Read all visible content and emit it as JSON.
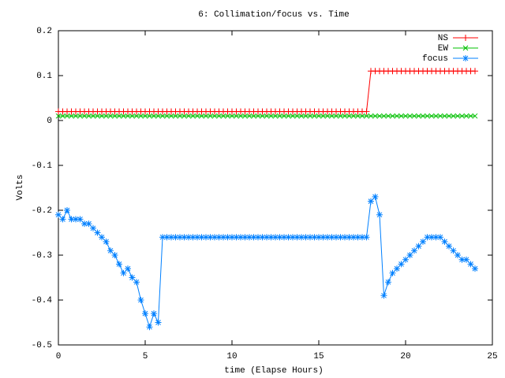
{
  "chart_data": {
    "type": "line",
    "title": "6: Collimation/focus vs. Time",
    "x_label": "time (Elapse Hours)",
    "y_label": "Volts",
    "xlim": [
      0,
      25
    ],
    "ylim": [
      -0.5,
      0.2
    ],
    "xticks": [
      0,
      5,
      10,
      15,
      20,
      25
    ],
    "yticks": [
      -0.5,
      -0.4,
      -0.3,
      -0.2,
      -0.1,
      0,
      0.1,
      0.2
    ],
    "legend": "top right",
    "x": [
      0,
      0.25,
      0.5,
      0.75,
      1,
      1.25,
      1.5,
      1.75,
      2,
      2.25,
      2.5,
      2.75,
      3,
      3.25,
      3.5,
      3.75,
      4,
      4.25,
      4.5,
      4.75,
      5,
      5.25,
      5.5,
      5.75,
      6,
      6.25,
      6.5,
      6.75,
      7,
      7.25,
      7.5,
      7.75,
      8,
      8.25,
      8.5,
      8.75,
      9,
      9.25,
      9.5,
      9.75,
      10,
      10.25,
      10.5,
      10.75,
      11,
      11.25,
      11.5,
      11.75,
      12,
      12.25,
      12.5,
      12.75,
      13,
      13.25,
      13.5,
      13.75,
      14,
      14.25,
      14.5,
      14.75,
      15,
      15.25,
      15.5,
      15.75,
      16,
      16.25,
      16.5,
      16.75,
      17,
      17.25,
      17.5,
      17.75,
      18,
      18.25,
      18.5,
      18.75,
      19,
      19.25,
      19.5,
      19.75,
      20,
      20.25,
      20.5,
      20.75,
      21,
      21.25,
      21.5,
      21.75,
      22,
      22.25,
      22.5,
      22.75,
      23,
      23.25,
      23.5,
      23.75,
      24
    ],
    "series": [
      {
        "name": "NS",
        "color": "#ff0000",
        "marker": "plus",
        "values": [
          0.02,
          0.02,
          0.02,
          0.02,
          0.02,
          0.02,
          0.02,
          0.02,
          0.02,
          0.02,
          0.02,
          0.02,
          0.02,
          0.02,
          0.02,
          0.02,
          0.02,
          0.02,
          0.02,
          0.02,
          0.02,
          0.02,
          0.02,
          0.02,
          0.02,
          0.02,
          0.02,
          0.02,
          0.02,
          0.02,
          0.02,
          0.02,
          0.02,
          0.02,
          0.02,
          0.02,
          0.02,
          0.02,
          0.02,
          0.02,
          0.02,
          0.02,
          0.02,
          0.02,
          0.02,
          0.02,
          0.02,
          0.02,
          0.02,
          0.02,
          0.02,
          0.02,
          0.02,
          0.02,
          0.02,
          0.02,
          0.02,
          0.02,
          0.02,
          0.02,
          0.02,
          0.02,
          0.02,
          0.02,
          0.02,
          0.02,
          0.02,
          0.02,
          0.02,
          0.02,
          0.02,
          0.02,
          0.11,
          0.11,
          0.11,
          0.11,
          0.11,
          0.11,
          0.11,
          0.11,
          0.11,
          0.11,
          0.11,
          0.11,
          0.11,
          0.11,
          0.11,
          0.11,
          0.11,
          0.11,
          0.11,
          0.11,
          0.11,
          0.11,
          0.11,
          0.11,
          0.11
        ]
      },
      {
        "name": "EW",
        "color": "#00c000",
        "marker": "cross",
        "values": [
          0.01,
          0.01,
          0.01,
          0.01,
          0.01,
          0.01,
          0.01,
          0.01,
          0.01,
          0.01,
          0.01,
          0.01,
          0.01,
          0.01,
          0.01,
          0.01,
          0.01,
          0.01,
          0.01,
          0.01,
          0.01,
          0.01,
          0.01,
          0.01,
          0.01,
          0.01,
          0.01,
          0.01,
          0.01,
          0.01,
          0.01,
          0.01,
          0.01,
          0.01,
          0.01,
          0.01,
          0.01,
          0.01,
          0.01,
          0.01,
          0.01,
          0.01,
          0.01,
          0.01,
          0.01,
          0.01,
          0.01,
          0.01,
          0.01,
          0.01,
          0.01,
          0.01,
          0.01,
          0.01,
          0.01,
          0.01,
          0.01,
          0.01,
          0.01,
          0.01,
          0.01,
          0.01,
          0.01,
          0.01,
          0.01,
          0.01,
          0.01,
          0.01,
          0.01,
          0.01,
          0.01,
          0.01,
          0.01,
          0.01,
          0.01,
          0.01,
          0.01,
          0.01,
          0.01,
          0.01,
          0.01,
          0.01,
          0.01,
          0.01,
          0.01,
          0.01,
          0.01,
          0.01,
          0.01,
          0.01,
          0.01,
          0.01,
          0.01,
          0.01,
          0.01,
          0.01,
          0.01
        ]
      },
      {
        "name": "focus",
        "color": "#0080ff",
        "marker": "star",
        "values": [
          -0.21,
          -0.22,
          -0.2,
          -0.22,
          -0.22,
          -0.22,
          -0.23,
          -0.23,
          -0.24,
          -0.25,
          -0.26,
          -0.27,
          -0.29,
          -0.3,
          -0.32,
          -0.34,
          -0.33,
          -0.35,
          -0.36,
          -0.4,
          -0.43,
          -0.46,
          -0.43,
          -0.45,
          -0.26,
          -0.26,
          -0.26,
          -0.26,
          -0.26,
          -0.26,
          -0.26,
          -0.26,
          -0.26,
          -0.26,
          -0.26,
          -0.26,
          -0.26,
          -0.26,
          -0.26,
          -0.26,
          -0.26,
          -0.26,
          -0.26,
          -0.26,
          -0.26,
          -0.26,
          -0.26,
          -0.26,
          -0.26,
          -0.26,
          -0.26,
          -0.26,
          -0.26,
          -0.26,
          -0.26,
          -0.26,
          -0.26,
          -0.26,
          -0.26,
          -0.26,
          -0.26,
          -0.26,
          -0.26,
          -0.26,
          -0.26,
          -0.26,
          -0.26,
          -0.26,
          -0.26,
          -0.26,
          -0.26,
          -0.26,
          -0.18,
          -0.17,
          -0.21,
          -0.39,
          -0.36,
          -0.34,
          -0.33,
          -0.32,
          -0.31,
          -0.3,
          -0.29,
          -0.28,
          -0.27,
          -0.26,
          -0.26,
          -0.26,
          -0.26,
          -0.27,
          -0.28,
          -0.29,
          -0.3,
          -0.31,
          -0.31,
          -0.32,
          -0.33
        ]
      }
    ]
  }
}
